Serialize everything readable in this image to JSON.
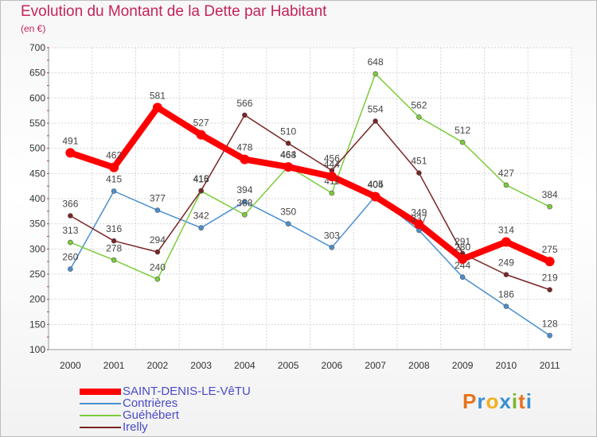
{
  "header": {
    "title": "Evolution du Montant de la Dette par Habitant",
    "subtitle": "(en €)"
  },
  "brand": {
    "letters": [
      "P",
      "r",
      "o",
      "x",
      "i",
      "t",
      "i"
    ],
    "colors": [
      "#e8731c",
      "#3a8fd0",
      "#f2b01e",
      "#3a8fd0",
      "#79b829",
      "#e8731c",
      "#3a8fd0"
    ]
  },
  "chart_data": {
    "type": "line",
    "title": "Evolution du Montant de la Dette par Habitant",
    "ylabel": "(en €)",
    "x": [
      "2000",
      "2001",
      "2002",
      "2003",
      "2004",
      "2005",
      "2006",
      "2007",
      "2008",
      "2009",
      "2010",
      "2011"
    ],
    "ylim": [
      100,
      700
    ],
    "yticks": [
      100,
      150,
      200,
      250,
      300,
      350,
      400,
      450,
      500,
      550,
      600,
      650,
      700
    ],
    "grid": true,
    "legend_position": "bottom-left",
    "series": [
      {
        "name": "SAINT-DENIS-LE-VêTU",
        "color": "#ff0000",
        "values": [
          491,
          462,
          581,
          527,
          478,
          463,
          444,
          404,
          349,
          280,
          314,
          275
        ]
      },
      {
        "name": "Contrières",
        "color": "#4a8fd0",
        "values": [
          260,
          415,
          377,
          342,
          394,
          350,
          303,
          405,
          337,
          244,
          186,
          128
        ]
      },
      {
        "name": "Guéhébert",
        "color": "#7ccc3a",
        "values": [
          313,
          278,
          240,
          415,
          368,
          464,
          411,
          648,
          562,
          512,
          427,
          384
        ]
      },
      {
        "name": "Irelly",
        "color": "#7a2424",
        "values": [
          366,
          316,
          294,
          416,
          566,
          510,
          456,
          554,
          451,
          291,
          249,
          219
        ]
      }
    ]
  }
}
